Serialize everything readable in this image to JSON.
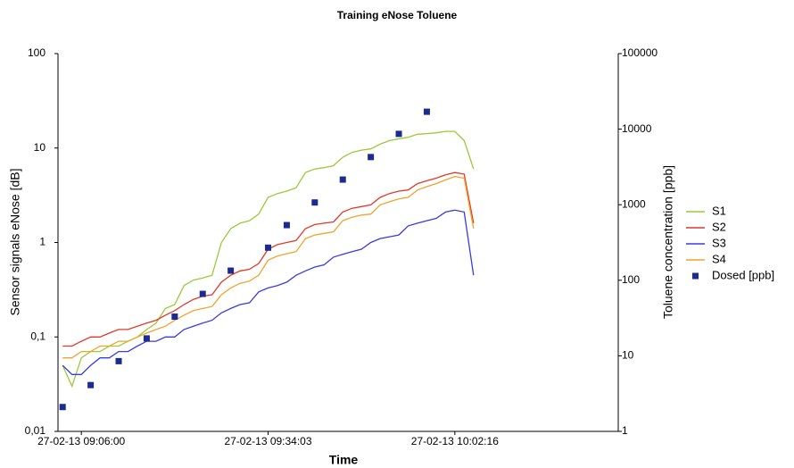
{
  "chart_data": {
    "type": "line",
    "title": "Training eNose Toluene",
    "x_label": "Time",
    "y_label": "Sensor signals eNose [dB]",
    "y2_label": "Toluene concentration [ppb]",
    "categories": [
      null,
      null,
      "27-02-13 09:06:00",
      null,
      null,
      null,
      null,
      null,
      null,
      null,
      null,
      null,
      null,
      null,
      null,
      null,
      null,
      null,
      null,
      null,
      null,
      null,
      "27-02-13 09:34:03",
      null,
      null,
      null,
      null,
      null,
      null,
      null,
      null,
      null,
      null,
      null,
      null,
      null,
      null,
      null,
      null,
      null,
      null,
      null,
      "27-02-13 10:02:16",
      null,
      null,
      null,
      null,
      null,
      null,
      null,
      null,
      null,
      null,
      null,
      null,
      null,
      null,
      null,
      null,
      null
    ],
    "ylim": [
      0.01,
      100
    ],
    "yticks": [
      {
        "value": 0.01,
        "label": "0,01"
      },
      {
        "value": 0.1,
        "label": "0,1"
      },
      1,
      10,
      100
    ],
    "log_y": true,
    "y2lim": [
      1,
      100000
    ],
    "y2ticks": [
      1,
      10,
      100,
      1000,
      10000,
      100000
    ],
    "log_y2": true,
    "grid": false,
    "legend": "right",
    "series": [
      {
        "name": "S1",
        "color": "#9dc83a",
        "values": [
          0.05,
          0.03,
          0.06,
          0.07,
          0.07,
          0.08,
          0.08,
          0.09,
          0.1,
          0.12,
          0.14,
          0.2,
          0.22,
          0.35,
          0.4,
          0.42,
          0.45,
          1.0,
          1.4,
          1.6,
          1.7,
          2.0,
          3.0,
          3.3,
          3.5,
          3.8,
          5.5,
          6,
          6.2,
          6.5,
          8,
          9,
          9.5,
          9.8,
          11,
          12,
          12.5,
          13,
          14,
          14.2,
          14.5,
          15,
          15,
          12,
          6,
          null,
          null,
          null,
          null,
          null,
          null,
          null,
          null,
          null,
          null,
          null,
          null,
          null,
          null,
          null
        ]
      },
      {
        "name": "S2",
        "color": "#e0392b",
        "values": [
          0.08,
          0.08,
          0.09,
          0.1,
          0.1,
          0.11,
          0.12,
          0.12,
          0.13,
          0.14,
          0.15,
          0.17,
          0.19,
          0.22,
          0.25,
          0.27,
          0.28,
          0.38,
          0.45,
          0.5,
          0.52,
          0.6,
          0.85,
          0.95,
          1.0,
          1.05,
          1.4,
          1.55,
          1.6,
          1.65,
          2.1,
          2.3,
          2.4,
          2.5,
          3.0,
          3.3,
          3.5,
          3.6,
          4.2,
          4.5,
          4.8,
          5.2,
          5.5,
          5.3,
          1.6,
          null,
          null,
          null,
          null,
          null,
          null,
          null,
          null,
          null,
          null,
          null,
          null,
          null,
          null,
          null
        ]
      },
      {
        "name": "S3",
        "color": "#3a3ae6",
        "values": [
          0.05,
          0.04,
          0.04,
          0.05,
          0.06,
          0.06,
          0.07,
          0.07,
          0.08,
          0.09,
          0.09,
          0.1,
          0.1,
          0.12,
          0.13,
          0.14,
          0.15,
          0.18,
          0.2,
          0.22,
          0.23,
          0.3,
          0.33,
          0.35,
          0.38,
          0.45,
          0.5,
          0.55,
          0.58,
          0.7,
          0.75,
          0.8,
          0.85,
          1.0,
          1.1,
          1.15,
          1.2,
          1.5,
          1.6,
          1.7,
          1.8,
          2.1,
          2.2,
          2.1,
          0.45,
          null,
          null,
          null,
          null,
          null,
          null,
          null,
          null,
          null,
          null,
          null,
          null,
          null,
          null,
          null
        ]
      },
      {
        "name": "S4",
        "color": "#f0a32e",
        "values": [
          0.06,
          0.06,
          0.07,
          0.07,
          0.08,
          0.08,
          0.09,
          0.09,
          0.1,
          0.11,
          0.12,
          0.13,
          0.15,
          0.17,
          0.19,
          0.2,
          0.21,
          0.28,
          0.33,
          0.37,
          0.39,
          0.45,
          0.65,
          0.72,
          0.76,
          0.8,
          1.1,
          1.2,
          1.25,
          1.3,
          1.7,
          1.85,
          1.95,
          2.0,
          2.5,
          2.7,
          2.9,
          3.0,
          3.6,
          3.9,
          4.2,
          4.6,
          5.0,
          4.8,
          1.4,
          null,
          null,
          null,
          null,
          null,
          null,
          null,
          null,
          null,
          null,
          null,
          null,
          null,
          null,
          null
        ]
      },
      {
        "name": "Dosed [ppb]",
        "color": "#1c2b8f",
        "marker": "square",
        "axis": "y2",
        "values": [
          2.1,
          null,
          null,
          4.1,
          null,
          null,
          8.5,
          null,
          null,
          17,
          null,
          null,
          33,
          null,
          null,
          66,
          null,
          null,
          134,
          null,
          null,
          null,
          270,
          null,
          537,
          null,
          null,
          1070,
          null,
          null,
          2150,
          null,
          null,
          4270,
          null,
          null,
          8660,
          null,
          null,
          17000,
          null,
          null,
          null,
          null,
          null,
          null,
          null,
          null,
          null,
          null,
          null,
          null,
          null,
          null,
          null,
          null,
          null,
          null,
          null,
          null
        ]
      }
    ]
  }
}
